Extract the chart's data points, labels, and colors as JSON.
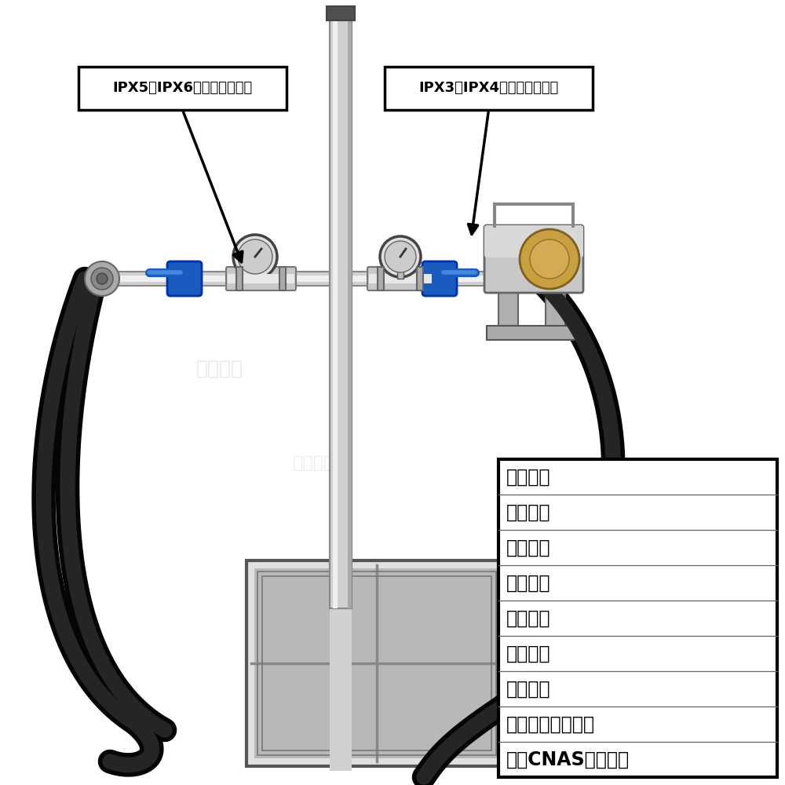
{
  "background_color": "#ffffff",
  "label1_text": "IPX5、IPX6防喷水试验装置",
  "label2_text": "IPX3、IPX4手持式试验装置",
  "info_lines": [
    "自主研发",
    "按需制造",
    "质量保证",
    "性能稳定",
    "上门安装",
    "终身维护",
    "可开增票",
    "可含第三方计量证",
    "书、CNAS校准报告"
  ],
  "watermark_text": "无锡中测",
  "pole_color": "#d0d0d0",
  "pole_edge": "#888888",
  "pipe_color": "#c8c8c8",
  "hose_color": "#111111",
  "base_color": "#c0c0c0",
  "valve_blue": "#1a5bbf",
  "gauge_face": "#dddddd",
  "arrow_color": "#000000",
  "box_edge_color": "#000000",
  "text_color": "#000000",
  "font_size_label": 13,
  "font_size_info": 17
}
